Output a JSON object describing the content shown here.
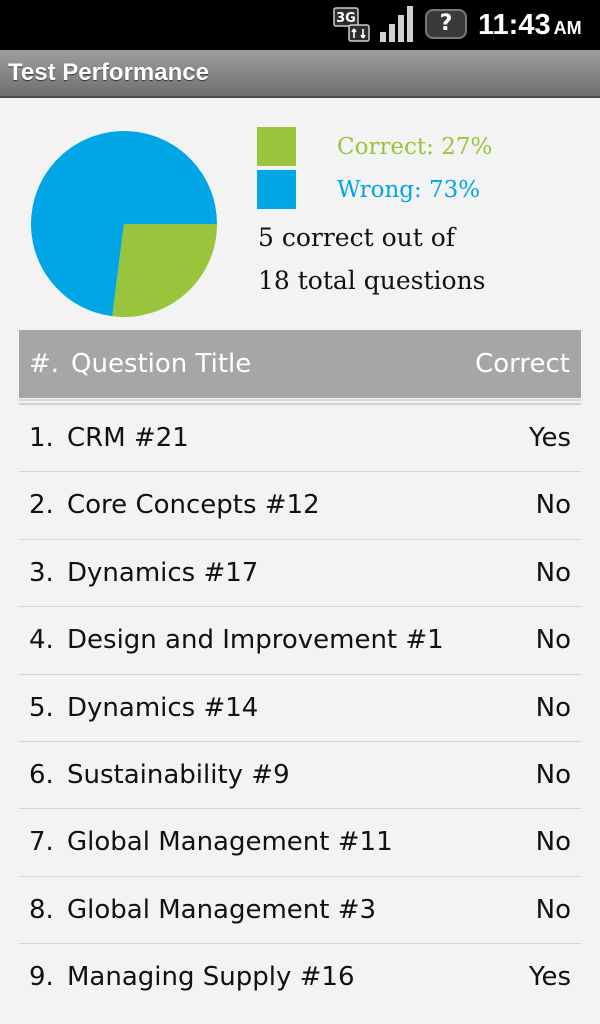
{
  "status_bar": {
    "network": "3G",
    "notification": "?",
    "time": "11:43",
    "ampm": "AM"
  },
  "title_bar": {
    "title": "Test Performance"
  },
  "summary": {
    "correct_percent": 27,
    "wrong_percent": 73,
    "correct_label": "Correct: 27%",
    "wrong_label": "Wrong: 73%",
    "line1": "5 correct out of",
    "line2": "18 total questions",
    "colors": {
      "correct": "#9ac43b",
      "wrong": "#01a6e6"
    }
  },
  "table": {
    "headers": {
      "num": "#.",
      "title": "Question Title",
      "correct": "Correct"
    },
    "rows": [
      {
        "num": "1.",
        "title": "CRM #21",
        "correct": "Yes"
      },
      {
        "num": "2.",
        "title": "Core Concepts #12",
        "correct": "No"
      },
      {
        "num": "3.",
        "title": "Dynamics #17",
        "correct": "No"
      },
      {
        "num": "4.",
        "title": "Design and Improvement #1",
        "correct": "No"
      },
      {
        "num": "5.",
        "title": "Dynamics #14",
        "correct": "No"
      },
      {
        "num": "6.",
        "title": "Sustainability #9",
        "correct": "No"
      },
      {
        "num": "7.",
        "title": "Global Management #11",
        "correct": "No"
      },
      {
        "num": "8.",
        "title": "Global Management #3",
        "correct": "No"
      },
      {
        "num": "9.",
        "title": "Managing Supply #16",
        "correct": "Yes"
      }
    ]
  }
}
